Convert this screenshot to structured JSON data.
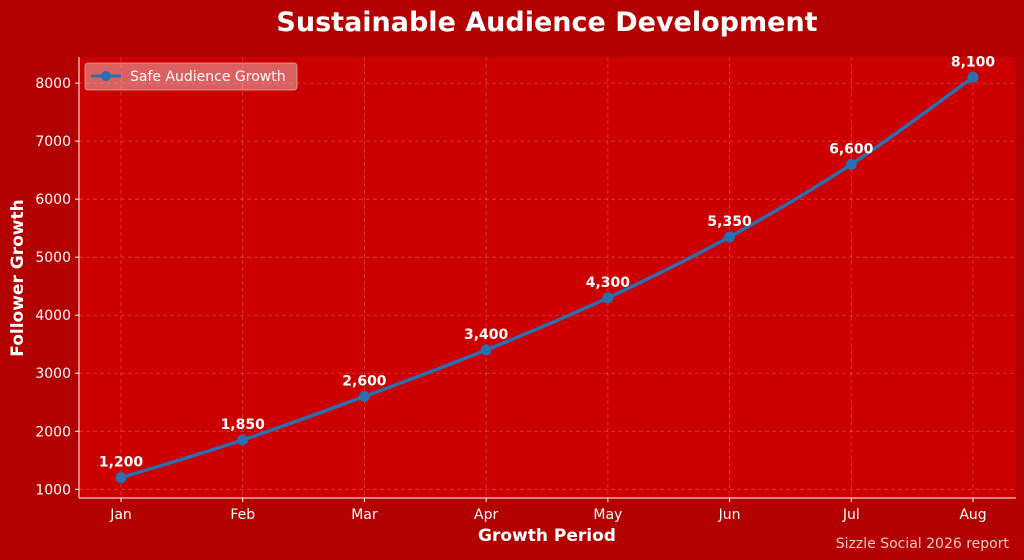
{
  "colors": {
    "figure_bg": "#b30000",
    "plot_bg": "#cc0000",
    "line": "#2b6fb0",
    "grid": "#e06060",
    "text": "#ffffff",
    "legend_bg": "#e8b0b0",
    "credit": "#f0c8c8"
  },
  "chart_data": {
    "type": "line",
    "title": "Sustainable Audience Development",
    "xlabel": "Growth Period",
    "ylabel": "Follower Growth",
    "categories": [
      "Jan",
      "Feb",
      "Mar",
      "Apr",
      "May",
      "Jun",
      "Jul",
      "Aug"
    ],
    "series": [
      {
        "name": "Safe Audience Growth",
        "values": [
          1200,
          1850,
          2600,
          3400,
          4300,
          5350,
          6600,
          8100
        ],
        "data_labels": [
          "1,200",
          "1,850",
          "2,600",
          "3,400",
          "4,300",
          "5,350",
          "6,600",
          "8,100"
        ],
        "marker": "circle"
      }
    ],
    "yticks": [
      1000,
      2000,
      3000,
      4000,
      5000,
      6000,
      7000,
      8000
    ],
    "ylim": [
      850,
      8450
    ],
    "grid": true,
    "legend_position": "top-left"
  },
  "footer": {
    "credit": "Sizzle Social 2026 report"
  }
}
